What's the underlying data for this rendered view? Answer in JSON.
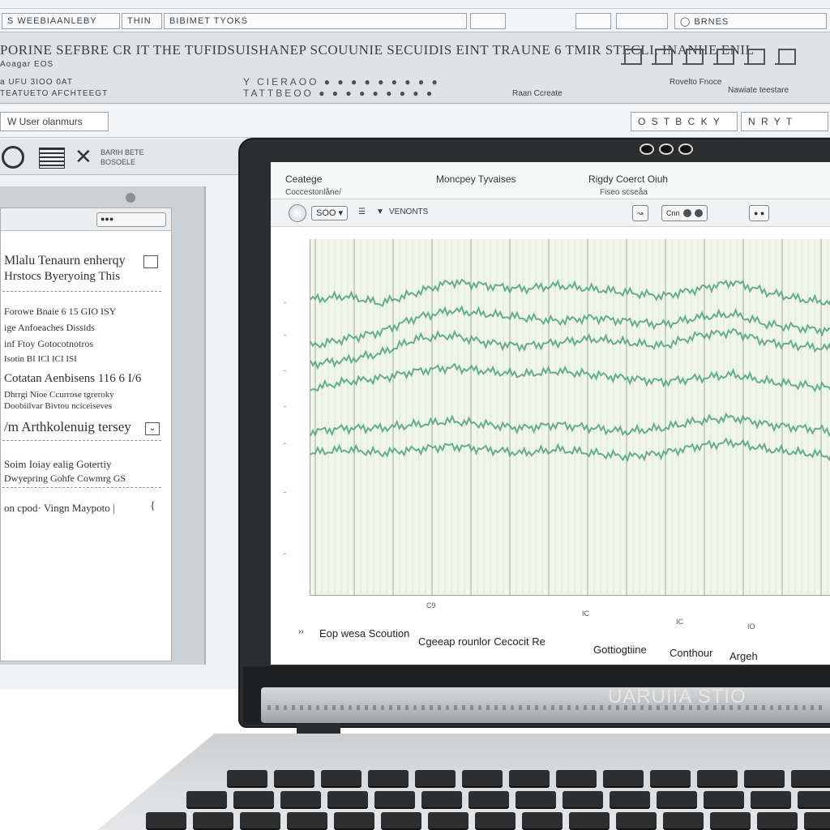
{
  "colors": {
    "plot_background": "#f1f6ea",
    "trace": "#4aa37a",
    "bezel": "#2b2d2f"
  },
  "background_app": {
    "menubar": {
      "tab_1": "S WEEBIAANLEBY",
      "tab_2": "THIN",
      "tab_3": "BIBIMET TYOKS",
      "search": "BRNES"
    },
    "ribbon": {
      "title_line": "PORINE SEFBRE CR IT  THE TUFIDSUISHANEP SCOUUNIE SECUIDIS EINT  TRAUNE 6 TMIR STECLI,  INANHE ENIL",
      "sub_left": "Aoagar EOS",
      "row2_left": "a UFU 3IOO 0AT",
      "row2_dots": "Y  CIERAOO ● ● ● ● ● ● ● ● ●",
      "row3_left": "TEATUETO  AFCHTEEGT",
      "row3_dots": "TATTBEOO ● ● ● ● ● ● ● ● ●",
      "right_1": "Rovelto Fnoce",
      "right_2": "Raan Ccreate",
      "right_3": "Nawiate teestare",
      "right_icons": [
        "building-icon",
        "bank-icon",
        "chart-icon",
        "tools-icon",
        "columns-icon",
        "lamp-icon"
      ]
    },
    "toolbar": {
      "field_left": "W User olanmurs",
      "field_right_1": "O  S T B C K Y",
      "field_right_2": "N R Y T"
    },
    "side_tools": {
      "text": "BARIH BETE\nBOSOELE"
    },
    "document": {
      "search": "●●●",
      "line_1": "Mlalu Tenaurn enherqy",
      "line_2": "Hrstocs Byeryoing   This",
      "line_3": "Forowe Bnaie  6  15 GIO ISY",
      "line_4": "ige Anfoeaches Dissids",
      "line_5": "inf Ftoy Gotocotnotros",
      "line_6": "Isotin  BI  ICI ICI  ISI",
      "line_7": "Cotatan Aenbisens  116 6 I/6",
      "line_8": "Dhrrgi Nioe Ccurrose tgreroky",
      "line_9": "Doobiilvar  Bivtou nciceiseves",
      "line_10": "/m Arthkolenuig tersey",
      "line_11": "Soim Ioiay ealig Gotertiy",
      "line_12": "Dwyepring  Gohfe Cowmrg GS",
      "line_13": "on cpod·  Vingn Maypoto |",
      "line_14": "{"
    }
  },
  "laptop": {
    "brand": "UARUIIA STIO",
    "app": {
      "title_1": "Ceatege",
      "subtitle_1": "Coccestonlåne/",
      "title_2": "Moncpey Tyvaises",
      "title_3": "Rigdy Coerct Oiuh",
      "subtitle_3": "Fiseo scseåa",
      "zoom": "SOO",
      "bar_text": "VENONTS",
      "bar_group_1": "Cnn",
      "bar_group_2": "● ●",
      "footer": {
        "item_1": "Eop wesa Scoution",
        "item_2": "Cgeeap rounlor Cecocit Re",
        "item_3": "Gottiogtiine",
        "item_4": "Conthour",
        "item_5": "Argeh"
      }
    }
  },
  "chart_data": {
    "type": "line",
    "title": "",
    "xlabel": "",
    "ylabel": "",
    "x_tick_labels": [
      "C9",
      "IC",
      "IC",
      "IO"
    ],
    "series": [
      {
        "values": [
          0.83,
          0.84,
          0.82,
          0.85,
          0.88,
          0.87,
          0.86,
          0.87,
          0.86,
          0.85,
          0.84,
          0.86,
          0.88,
          0.85,
          0.83,
          0.82
        ]
      },
      {
        "values": [
          0.7,
          0.72,
          0.74,
          0.78,
          0.8,
          0.79,
          0.78,
          0.77,
          0.78,
          0.77,
          0.76,
          0.78,
          0.79,
          0.76,
          0.75,
          0.74
        ]
      },
      {
        "values": [
          0.65,
          0.66,
          0.68,
          0.72,
          0.73,
          0.71,
          0.7,
          0.71,
          0.72,
          0.71,
          0.7,
          0.73,
          0.74,
          0.71,
          0.7,
          0.69
        ]
      },
      {
        "values": [
          0.58,
          0.6,
          0.61,
          0.63,
          0.64,
          0.63,
          0.62,
          0.63,
          0.62,
          0.61,
          0.6,
          0.61,
          0.62,
          0.6,
          0.59,
          0.58
        ]
      },
      {
        "values": [
          0.46,
          0.47,
          0.47,
          0.48,
          0.49,
          0.48,
          0.47,
          0.48,
          0.47,
          0.46,
          0.47,
          0.49,
          0.5,
          0.48,
          0.47,
          0.46
        ]
      },
      {
        "values": [
          0.4,
          0.41,
          0.4,
          0.41,
          0.42,
          0.41,
          0.4,
          0.41,
          0.4,
          0.39,
          0.4,
          0.42,
          0.43,
          0.41,
          0.4,
          0.39
        ]
      }
    ],
    "ylim": [
      0,
      1
    ],
    "grid": true
  }
}
